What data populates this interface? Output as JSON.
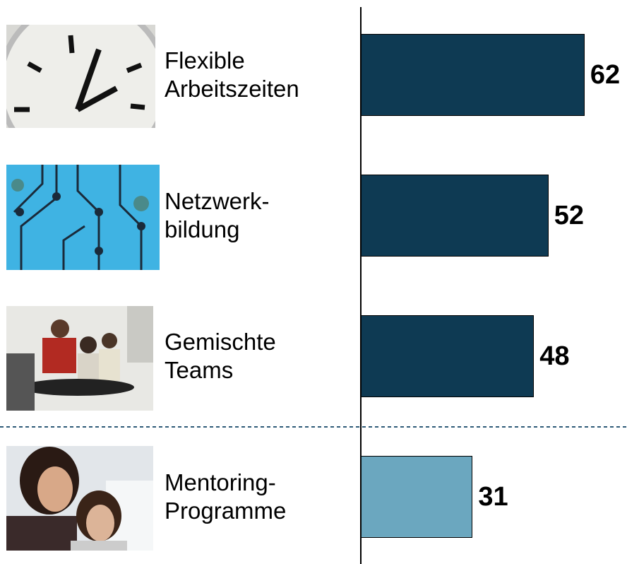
{
  "chart_data": {
    "type": "bar",
    "orientation": "horizontal",
    "categories": [
      "Flexible\nArbeitszeiten",
      "Netzwerk-\nbildung",
      "Gemischte\nTeams",
      "Mentoring-\nProgramme"
    ],
    "values": [
      62,
      52,
      48,
      31
    ],
    "colors": [
      "#0e3a53",
      "#0e3a53",
      "#0e3a53",
      "#6ba7bf"
    ]
  }
}
